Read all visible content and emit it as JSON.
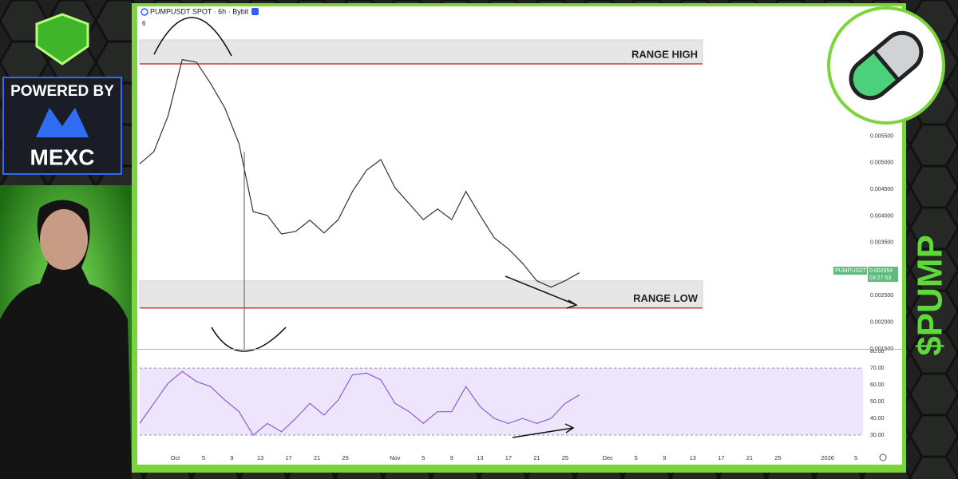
{
  "branding": {
    "powered_by": "POWERED BY",
    "exchange": "MEXC",
    "ticker": "$PUMP"
  },
  "chart_data": [
    {
      "type": "line",
      "title": "PUMPUSDT SPOT · 6h · Bybit",
      "interval_badge": "6",
      "x": [
        "2025-09-26",
        "2025-09-28",
        "2025-09-30",
        "2025-10-02",
        "2025-10-04",
        "2025-10-06",
        "2025-10-08",
        "2025-10-10",
        "2025-10-12",
        "2025-10-14",
        "2025-10-16",
        "2025-10-18",
        "2025-10-20",
        "2025-10-22",
        "2025-10-24",
        "2025-10-26",
        "2025-10-28",
        "2025-10-30",
        "2025-11-01",
        "2025-11-03",
        "2025-11-05",
        "2025-11-07",
        "2025-11-09",
        "2025-11-11",
        "2025-11-13",
        "2025-11-15",
        "2025-11-17",
        "2025-11-19",
        "2025-11-21",
        "2025-11-23",
        "2025-11-25",
        "2025-11-27"
      ],
      "series": [
        {
          "name": "PUMPUSDT",
          "color": "#333333",
          "values": [
            0.00498,
            0.00521,
            0.00588,
            0.00694,
            0.00689,
            0.00649,
            0.00603,
            0.00536,
            0.00408,
            0.00401,
            0.00366,
            0.00371,
            0.00392,
            0.00368,
            0.00393,
            0.00446,
            0.00486,
            0.00506,
            0.00453,
            0.00423,
            0.00393,
            0.00413,
            0.00393,
            0.00446,
            0.00401,
            0.00359,
            0.00338,
            0.00311,
            0.00278,
            0.00266,
            0.00278,
            0.00293
          ]
        }
      ],
      "last_price": {
        "value": 0.002954,
        "label": "0.002954",
        "countdown": "03:27:53",
        "color": "#5fba7d"
      },
      "zones": [
        {
          "label": "RANGE HIGH",
          "line": 0.00686,
          "top": 0.00731
        },
        {
          "label": "RANGE LOW",
          "line": 0.00227,
          "top": 0.00278
        }
      ],
      "xlim": [
        "2025-09-26",
        "2026-01-06"
      ],
      "xticks": [
        {
          "value": "2025-10-01",
          "label": "Oct"
        },
        {
          "value": "2025-10-05",
          "label": "5"
        },
        {
          "value": "2025-10-09",
          "label": "9"
        },
        {
          "value": "2025-10-13",
          "label": "13"
        },
        {
          "value": "2025-10-17",
          "label": "17"
        },
        {
          "value": "2025-10-21",
          "label": "21"
        },
        {
          "value": "2025-10-25",
          "label": "25"
        },
        {
          "value": "2025-11-01",
          "label": "Nov"
        },
        {
          "value": "2025-11-05",
          "label": "5"
        },
        {
          "value": "2025-11-09",
          "label": "9"
        },
        {
          "value": "2025-11-13",
          "label": "13"
        },
        {
          "value": "2025-11-17",
          "label": "17"
        },
        {
          "value": "2025-11-21",
          "label": "21"
        },
        {
          "value": "2025-11-25",
          "label": "25"
        },
        {
          "value": "2025-12-01",
          "label": "Dec"
        },
        {
          "value": "2025-12-05",
          "label": "5"
        },
        {
          "value": "2025-12-09",
          "label": "9"
        },
        {
          "value": "2025-12-13",
          "label": "13"
        },
        {
          "value": "2025-12-17",
          "label": "17"
        },
        {
          "value": "2025-12-21",
          "label": "21"
        },
        {
          "value": "2025-12-25",
          "label": "25"
        },
        {
          "value": "2026-01-01",
          "label": "2026"
        },
        {
          "value": "2026-01-05",
          "label": "5"
        }
      ],
      "ylim": [
        0.0015,
        0.00794
      ],
      "yticks": [
        {
          "value": 0.0015,
          "label": "0.001500"
        },
        {
          "value": 0.002,
          "label": "0.002000"
        },
        {
          "value": 0.0025,
          "label": "0.002500"
        },
        {
          "value": 0.003,
          "label": "0.003000"
        },
        {
          "value": 0.0035,
          "label": "0.003500"
        },
        {
          "value": 0.004,
          "label": "0.004000"
        },
        {
          "value": 0.0045,
          "label": "0.004500"
        },
        {
          "value": 0.005,
          "label": "0.005000"
        },
        {
          "value": 0.0055,
          "label": "0.005500"
        }
      ]
    },
    {
      "type": "line",
      "x": [
        "2025-09-26",
        "2025-09-28",
        "2025-09-30",
        "2025-10-02",
        "2025-10-04",
        "2025-10-06",
        "2025-10-08",
        "2025-10-10",
        "2025-10-12",
        "2025-10-14",
        "2025-10-16",
        "2025-10-18",
        "2025-10-20",
        "2025-10-22",
        "2025-10-24",
        "2025-10-26",
        "2025-10-28",
        "2025-10-30",
        "2025-11-01",
        "2025-11-03",
        "2025-11-05",
        "2025-11-07",
        "2025-11-09",
        "2025-11-11",
        "2025-11-13",
        "2025-11-15",
        "2025-11-17",
        "2025-11-19",
        "2025-11-21",
        "2025-11-23",
        "2025-11-25",
        "2025-11-27"
      ],
      "series": [
        {
          "name": "RSI",
          "color": "#8e5bd6",
          "values": [
            37,
            49,
            61,
            68,
            62,
            59,
            51,
            44,
            30,
            37,
            32,
            40,
            49,
            42,
            51,
            66,
            67,
            63,
            49,
            44,
            37,
            44,
            44,
            59,
            47,
            40,
            37,
            40,
            37,
            40,
            49,
            54
          ]
        }
      ],
      "band": [
        30,
        70
      ],
      "xlim": [
        "2025-09-26",
        "2026-01-06"
      ],
      "ylim": [
        20.5,
        81
      ],
      "yticks": [
        {
          "value": 30,
          "label": "30.00"
        },
        {
          "value": 40,
          "label": "40.00"
        },
        {
          "value": 50,
          "label": "50.00"
        },
        {
          "value": 60,
          "label": "60.00"
        },
        {
          "value": 70,
          "label": "70.00"
        },
        {
          "value": 80,
          "label": "80.00"
        }
      ]
    }
  ]
}
